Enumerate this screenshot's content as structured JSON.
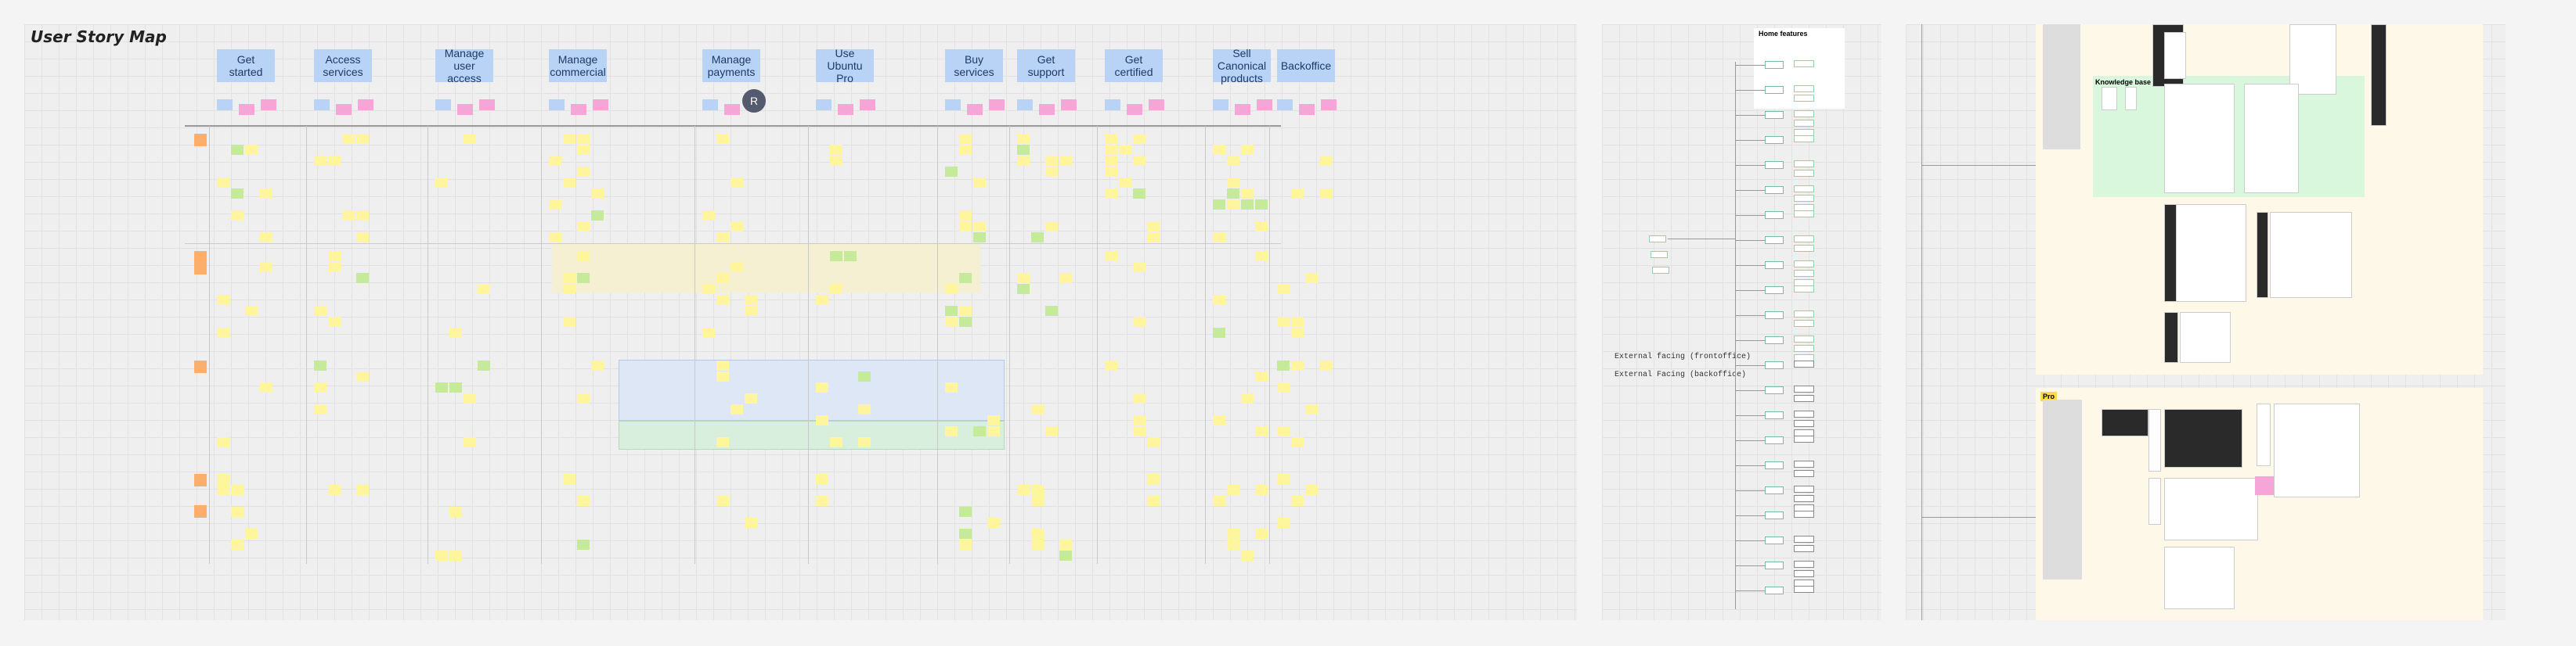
{
  "board": {
    "title": "User Story Map",
    "columns": [
      "Get started",
      "Access services",
      "Manage user access",
      "Manage commercial",
      "Manage payments",
      "Use Ubuntu Pro",
      "Buy services",
      "Get support",
      "Get certified",
      "Sell Canonical products",
      "Backoffice"
    ],
    "avatar": "R"
  },
  "flow": {
    "title": "Home features",
    "frontoffice": "External facing (frontoffice)",
    "backoffice": "External Facing (backoffice)"
  },
  "screens": {
    "knowledge": "Knowledge base",
    "pro": "Pro"
  }
}
